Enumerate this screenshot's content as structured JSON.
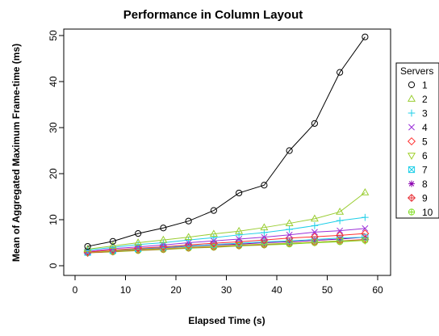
{
  "chart_data": {
    "type": "line",
    "title": "Performance in Column Layout",
    "xlabel": "Elapsed Time (s)",
    "ylabel": "Mean of Aggregated Maximum Frame-time (ms)",
    "xlim": [
      0,
      60
    ],
    "ylim": [
      0,
      50
    ],
    "x_ticks": [
      0,
      10,
      20,
      30,
      40,
      50,
      60
    ],
    "y_ticks": [
      0,
      10,
      20,
      30,
      40,
      50
    ],
    "grid": false,
    "legend_title": "Servers",
    "legend_position": "right",
    "x": [
      2.5,
      7.5,
      12.5,
      17.5,
      22.5,
      27.5,
      32.5,
      37.5,
      42.5,
      47.5,
      52.5,
      57.5
    ],
    "series": [
      {
        "name": "1",
        "color": "#000000",
        "marker": "circle",
        "values": [
          4.2,
          5.3,
          7.0,
          8.2,
          9.7,
          12.0,
          15.8,
          17.5,
          25.0,
          30.9,
          42.0,
          49.7
        ]
      },
      {
        "name": "2",
        "color": "#9ACD32",
        "marker": "triangle-up",
        "values": [
          3.6,
          4.3,
          5.0,
          5.6,
          6.2,
          6.9,
          7.5,
          8.3,
          9.2,
          10.2,
          11.7,
          15.9
        ]
      },
      {
        "name": "3",
        "color": "#1FCFE8",
        "marker": "plus",
        "values": [
          3.4,
          4.0,
          4.6,
          5.0,
          5.6,
          6.1,
          6.7,
          7.2,
          7.9,
          8.7,
          9.8,
          10.5
        ]
      },
      {
        "name": "4",
        "color": "#9B30D9",
        "marker": "cross",
        "values": [
          3.1,
          3.7,
          4.1,
          4.5,
          5.0,
          5.4,
          5.8,
          6.2,
          6.7,
          7.3,
          7.6,
          8.1
        ]
      },
      {
        "name": "5",
        "color": "#FF3030",
        "marker": "diamond",
        "values": [
          3.0,
          3.4,
          3.8,
          4.1,
          4.5,
          4.9,
          5.2,
          5.6,
          6.0,
          6.3,
          6.6,
          7.0
        ]
      },
      {
        "name": "6",
        "color": "#A0D02A",
        "marker": "triangle-down",
        "values": [
          2.9,
          3.2,
          3.5,
          3.7,
          4.0,
          4.2,
          4.5,
          4.7,
          4.9,
          5.1,
          5.4,
          5.5
        ]
      },
      {
        "name": "7",
        "color": "#1FCFE8",
        "marker": "square-cross",
        "values": [
          2.9,
          3.3,
          3.7,
          4.0,
          4.3,
          4.6,
          4.9,
          5.2,
          5.4,
          5.7,
          6.0,
          6.2
        ]
      },
      {
        "name": "8",
        "color": "#8B00B0",
        "marker": "asterisk",
        "values": [
          2.9,
          3.3,
          3.6,
          3.9,
          4.2,
          4.5,
          4.7,
          5.0,
          5.2,
          5.5,
          5.8,
          6.2
        ]
      },
      {
        "name": "9",
        "color": "#E8343A",
        "marker": "diamond-plus",
        "values": [
          2.8,
          3.1,
          3.4,
          3.6,
          3.9,
          4.1,
          4.4,
          4.6,
          4.9,
          5.1,
          5.4,
          5.7
        ]
      },
      {
        "name": "10",
        "color": "#7FDD20",
        "marker": "circle-plus",
        "values": [
          2.8,
          3.0,
          3.3,
          3.5,
          3.8,
          4.0,
          4.3,
          4.5,
          4.7,
          5.0,
          5.2,
          5.5
        ]
      }
    ]
  }
}
